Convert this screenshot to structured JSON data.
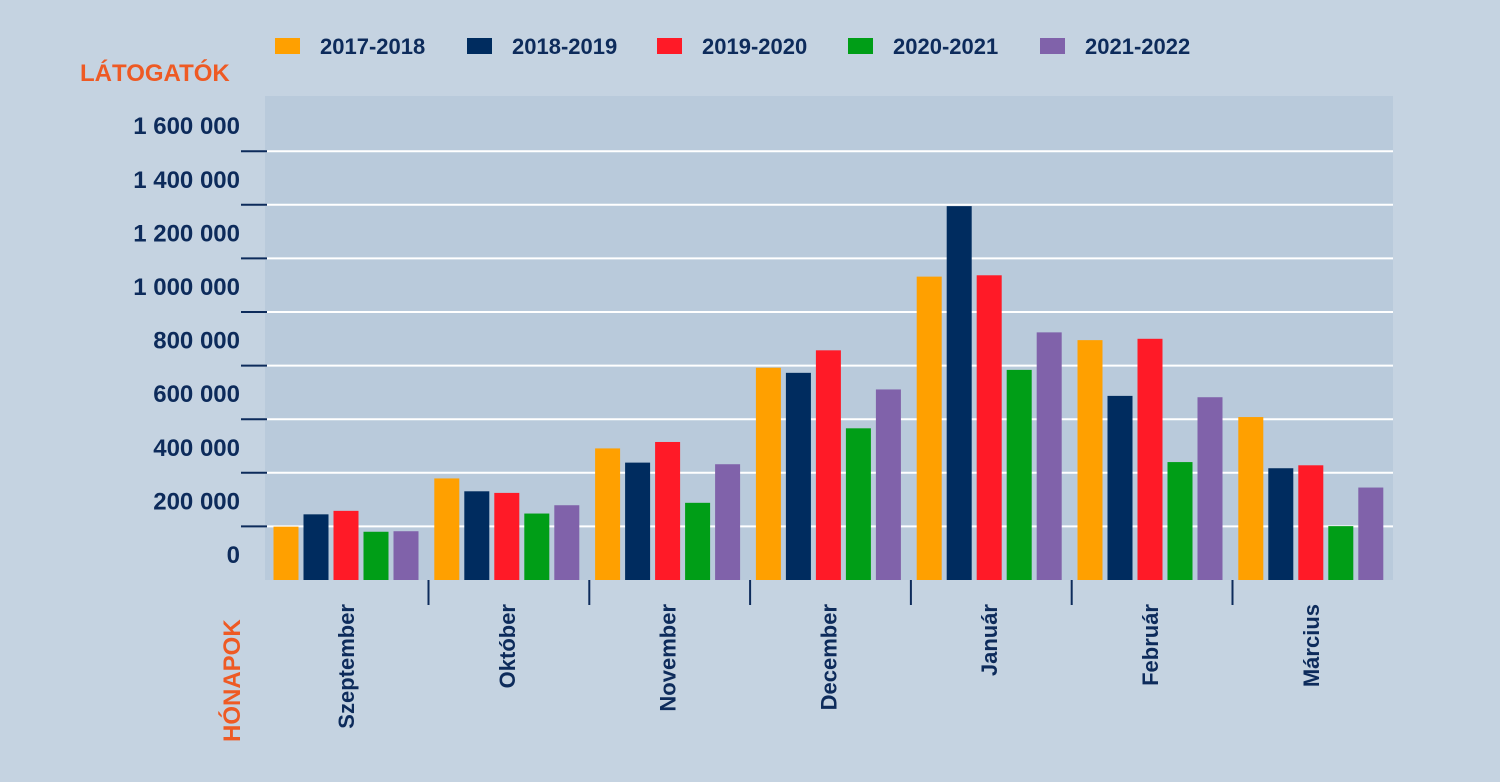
{
  "chart_data": {
    "type": "bar",
    "ylabel": "LÁTOGATÓK",
    "xlabel": "HÓNAPOK",
    "ylim": [
      0,
      1700000
    ],
    "yticks": [
      0,
      200000,
      400000,
      600000,
      800000,
      1000000,
      1200000,
      1400000,
      1600000
    ],
    "ytick_labels": [
      "0",
      "200 000",
      "400 000",
      "600 000",
      "800 000",
      "1 000 000",
      "1 200 000",
      "1 400 000",
      "1 600 000"
    ],
    "grid": true,
    "legend_position": "top",
    "categories": [
      "Szeptember",
      "Október",
      "November",
      "December",
      "Január",
      "Február",
      "Március"
    ],
    "series": [
      {
        "name": "2017-2018",
        "color": "#ffa000",
        "values": [
          199000,
          379000,
          491000,
          792000,
          1132000,
          895000,
          608000
        ]
      },
      {
        "name": "2018-2019",
        "color": "#002c5f",
        "values": [
          245000,
          331000,
          438000,
          773000,
          1395000,
          687000,
          417000
        ]
      },
      {
        "name": "2019-2020",
        "color": "#ff1a27",
        "values": [
          258000,
          325000,
          515000,
          857000,
          1137000,
          900000,
          428000
        ]
      },
      {
        "name": "2020-2021",
        "color": "#009e17",
        "values": [
          180000,
          248000,
          288000,
          566000,
          784000,
          440000,
          201000
        ]
      },
      {
        "name": "2021-2022",
        "color": "#8062aa",
        "values": [
          182000,
          279000,
          432000,
          711000,
          924000,
          682000,
          345000
        ]
      }
    ]
  },
  "colors": {
    "background": "#c5d3e1",
    "plot_area": "#b9cadb",
    "grid": "#ffffff",
    "text": "#0d2b5b",
    "axis_title": "#ee5a24"
  }
}
